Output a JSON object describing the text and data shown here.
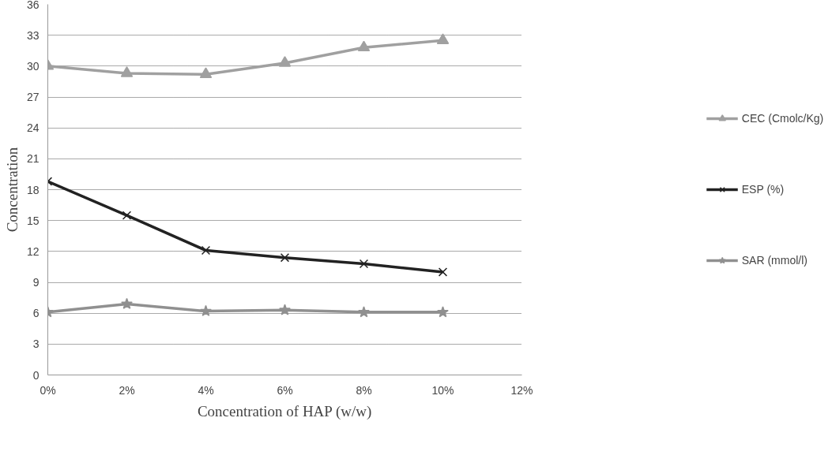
{
  "chart_data": {
    "type": "line",
    "xlabel": "Concentration of HAP (w/w)",
    "ylabel": "Concentration",
    "x": [
      0,
      2,
      4,
      6,
      8,
      10
    ],
    "series": [
      {
        "name": "CEC (Cmolc/Kg)",
        "color": "#a0a0a0",
        "marker": "triangle",
        "values": [
          30,
          29.3,
          29.2,
          30.3,
          31.8,
          32.5
        ]
      },
      {
        "name": "ESP (%)",
        "color": "#222222",
        "marker": "cross",
        "values": [
          18.8,
          15.5,
          12.1,
          11.4,
          10.8,
          10
        ]
      },
      {
        "name": "SAR (mmol/l)",
        "color": "#909090",
        "marker": "star",
        "values": [
          6.1,
          6.9,
          6.2,
          6.3,
          6.1,
          6.1
        ]
      }
    ],
    "xlim": [
      0,
      12
    ],
    "xticks": [
      {
        "value": 0,
        "label": "0%"
      },
      {
        "value": 2,
        "label": "2%"
      },
      {
        "value": 4,
        "label": "4%"
      },
      {
        "value": 6,
        "label": "6%"
      },
      {
        "value": 8,
        "label": "8%"
      },
      {
        "value": 10,
        "label": "10%"
      },
      {
        "value": 12,
        "label": "12%"
      }
    ],
    "ylim": [
      0,
      36
    ],
    "yticks": [
      0,
      3,
      6,
      9,
      12,
      15,
      18,
      21,
      24,
      27,
      30,
      33,
      36
    ],
    "grid": "y",
    "legend": "right",
    "line_style": "solid"
  }
}
